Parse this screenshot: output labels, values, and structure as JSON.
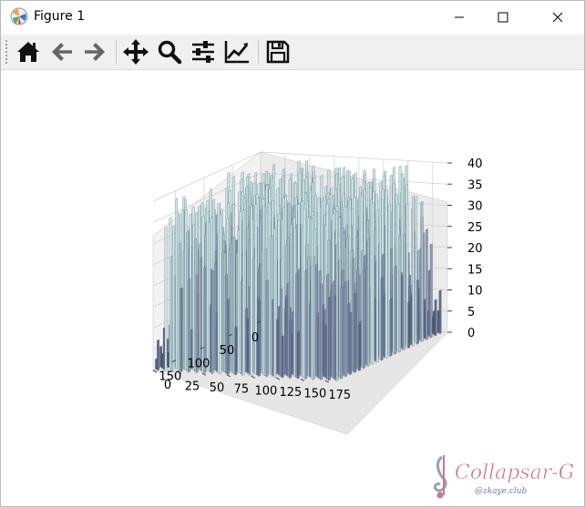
{
  "window": {
    "title": "Figure 1"
  },
  "window_controls": {
    "minimize_icon": "minimize-icon",
    "maximize_icon": "maximize-icon",
    "close_icon": "close-icon"
  },
  "toolbar": {
    "items": [
      {
        "name": "home-button",
        "icon": "home-icon"
      },
      {
        "name": "back-button",
        "icon": "arrow-left-icon"
      },
      {
        "name": "forward-button",
        "icon": "arrow-right-icon"
      },
      {
        "name": "pan-button",
        "icon": "move-icon"
      },
      {
        "name": "zoom-button",
        "icon": "zoom-icon"
      },
      {
        "name": "configure-subplots-button",
        "icon": "sliders-icon"
      },
      {
        "name": "edit-axis-button",
        "icon": "line-chart-icon"
      },
      {
        "name": "save-button",
        "icon": "floppy-disk-icon"
      }
    ]
  },
  "chart_data": {
    "type": "surface",
    "x_ticks": [
      "0",
      "50",
      "100",
      "150"
    ],
    "y_ticks": [
      "0",
      "25",
      "50",
      "75",
      "100",
      "125",
      "150",
      "175"
    ],
    "z_ticks": [
      "0",
      "5",
      "10",
      "15",
      "20",
      "25",
      "30",
      "35",
      "40"
    ],
    "xlim": [
      0,
      190
    ],
    "ylim": [
      0,
      190
    ],
    "zlim": [
      0,
      40
    ],
    "grid": true,
    "colors": {
      "surface_low": "#4a5270",
      "surface_high": "#c9e6e4",
      "pane": "#f2f2f2"
    }
  },
  "watermark": {
    "text": "Collapsar-G",
    "subtext": "@zkaye.club"
  }
}
